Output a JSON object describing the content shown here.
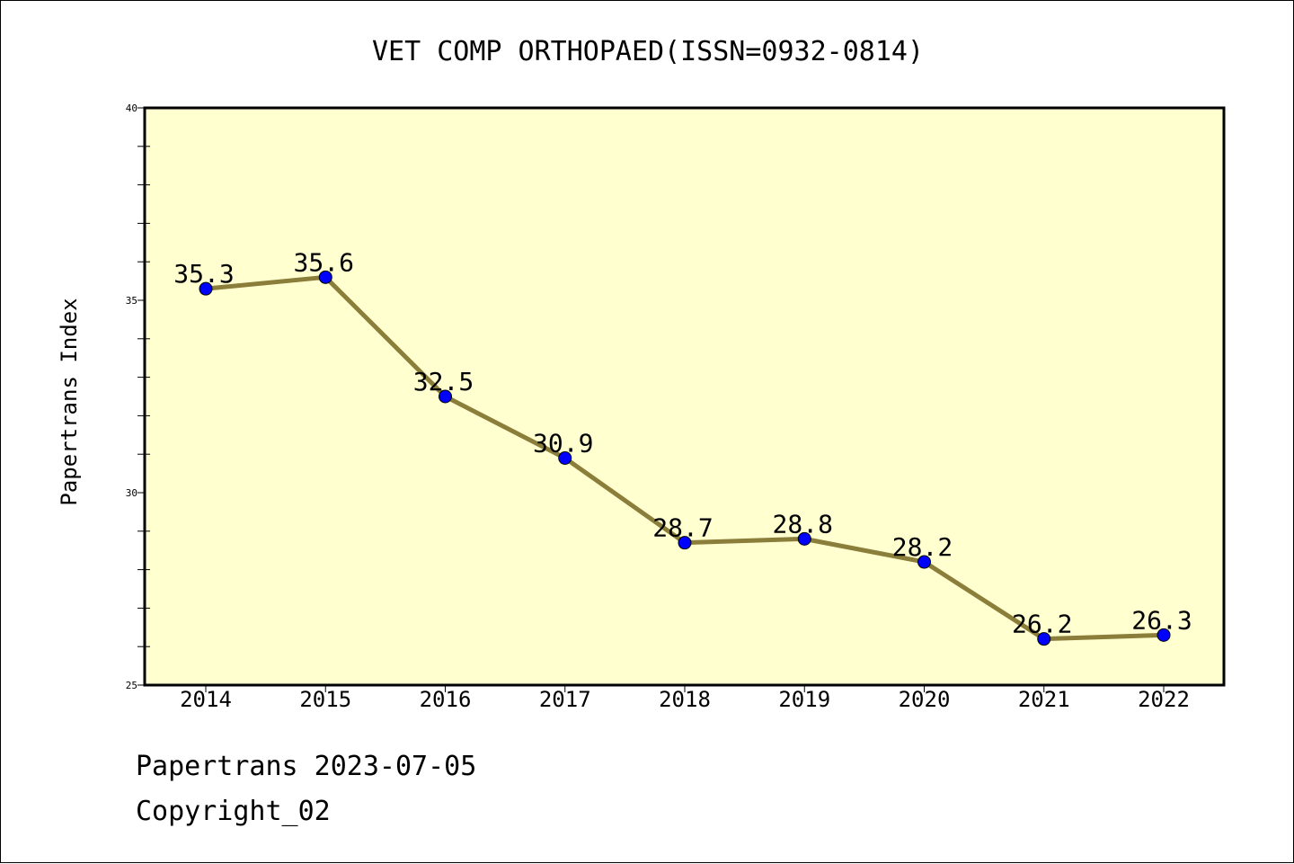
{
  "chart_data": {
    "type": "line",
    "title": "VET COMP ORTHOPAED(ISSN=0932-0814)",
    "xlabel": "",
    "ylabel": "Papertrans Index",
    "categories": [
      "2014",
      "2015",
      "2016",
      "2017",
      "2018",
      "2019",
      "2020",
      "2021",
      "2022"
    ],
    "values": [
      35.3,
      35.6,
      32.5,
      30.9,
      28.7,
      28.8,
      28.2,
      26.2,
      26.3
    ],
    "data_labels": [
      "35.3",
      "35.6",
      "32.5",
      "30.9",
      "28.7",
      "28.8",
      "28.2",
      "26.2",
      "26.3"
    ],
    "ylim": [
      25,
      40
    ],
    "yticks": [
      "25",
      "30",
      "35",
      "40"
    ],
    "grid": false,
    "legend": "none",
    "colors": {
      "plot_background": "#ffffd0",
      "line": "#8b7d3a",
      "marker": "#0000ff",
      "axes": "#000000"
    }
  },
  "footer": {
    "date_line": "Papertrans 2023-07-05",
    "copyright": "Copyright_02"
  }
}
